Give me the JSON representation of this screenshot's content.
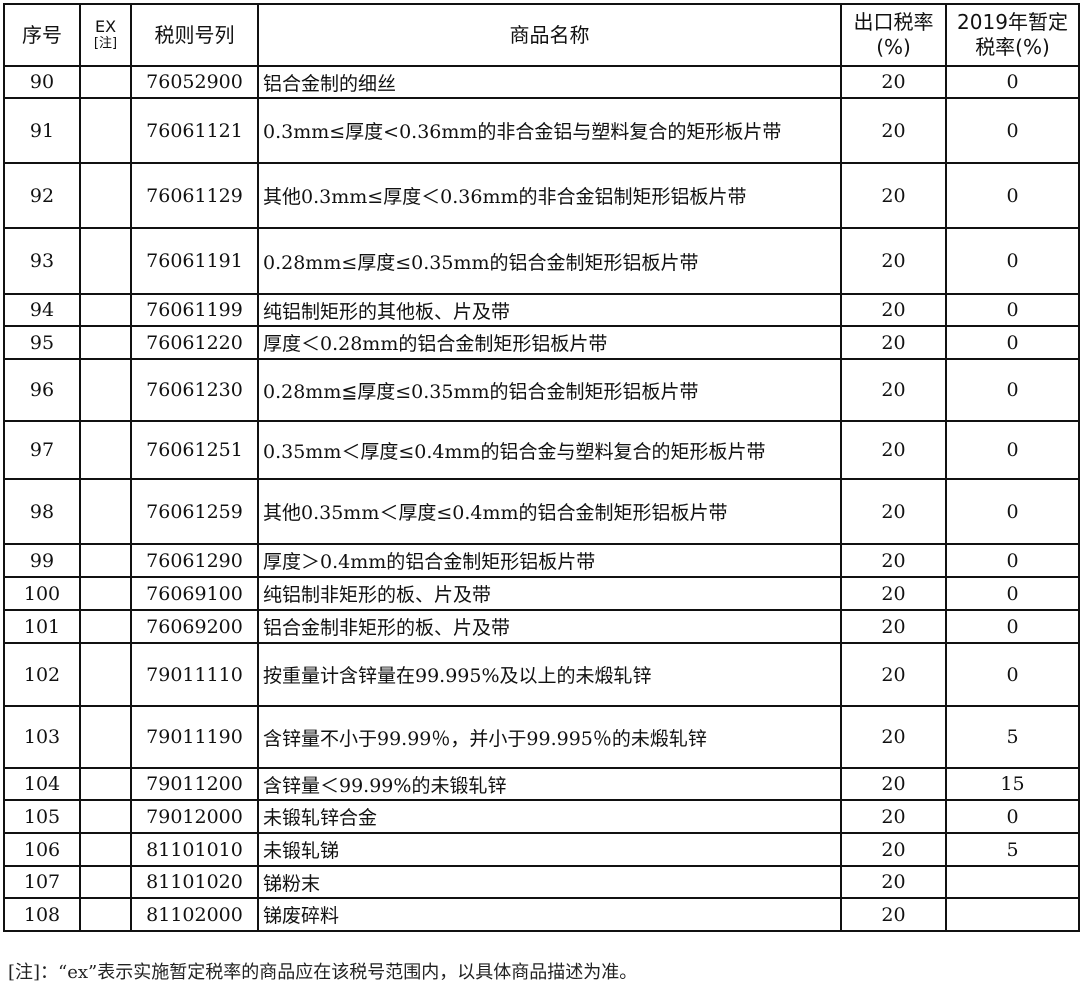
{
  "header": {
    "seq": "序号",
    "ex": "EX",
    "ex_note": "[注]",
    "code": "税则号列",
    "name": "商品名称",
    "export_rate_1": "出口税率",
    "export_rate_2": "(%)",
    "temp_rate_1": "2019年暂定",
    "temp_rate_2": "税率(%)"
  },
  "rows": [
    {
      "seq": "90",
      "ex": "",
      "code": "76052900",
      "name": "铝合金制的细丝",
      "export_rate": "20",
      "temp_rate": "0"
    },
    {
      "seq": "91",
      "ex": "",
      "code": "76061121",
      "name": "0.3mm≤厚度<0.36mm的非合金铝与塑料复合的矩形板片带",
      "export_rate": "20",
      "temp_rate": "0"
    },
    {
      "seq": "92",
      "ex": "",
      "code": "76061129",
      "name": "其他0.3mm≤厚度＜0.36mm的非合金铝制矩形铝板片带",
      "export_rate": "20",
      "temp_rate": "0"
    },
    {
      "seq": "93",
      "ex": "",
      "code": "76061191",
      "name": "0.28mm≤厚度≤0.35mm的铝合金制矩形铝板片带",
      "export_rate": "20",
      "temp_rate": "0"
    },
    {
      "seq": "94",
      "ex": "",
      "code": "76061199",
      "name": "纯铝制矩形的其他板、片及带",
      "export_rate": "20",
      "temp_rate": "0"
    },
    {
      "seq": "95",
      "ex": "",
      "code": "76061220",
      "name": "厚度＜0.28mm的铝合金制矩形铝板片带",
      "export_rate": "20",
      "temp_rate": "0"
    },
    {
      "seq": "96",
      "ex": "",
      "code": "76061230",
      "name": "0.28mm≦厚度≤0.35mm的铝合金制矩形铝板片带",
      "export_rate": "20",
      "temp_rate": "0"
    },
    {
      "seq": "97",
      "ex": "",
      "code": "76061251",
      "name": "0.35mm＜厚度≤0.4mm的铝合金与塑料复合的矩形板片带",
      "export_rate": "20",
      "temp_rate": "0"
    },
    {
      "seq": "98",
      "ex": "",
      "code": "76061259",
      "name": "其他0.35mm＜厚度≤0.4mm的铝合金制矩形铝板片带",
      "export_rate": "20",
      "temp_rate": "0"
    },
    {
      "seq": "99",
      "ex": "",
      "code": "76061290",
      "name": "厚度＞0.4mm的铝合金制矩形铝板片带",
      "export_rate": "20",
      "temp_rate": "0"
    },
    {
      "seq": "100",
      "ex": "",
      "code": "76069100",
      "name": "纯铝制非矩形的板、片及带",
      "export_rate": "20",
      "temp_rate": "0"
    },
    {
      "seq": "101",
      "ex": "",
      "code": "76069200",
      "name": "铝合金制非矩形的板、片及带",
      "export_rate": "20",
      "temp_rate": "0"
    },
    {
      "seq": "102",
      "ex": "",
      "code": "79011110",
      "name": "按重量计含锌量在99.995%及以上的未煅轧锌",
      "export_rate": "20",
      "temp_rate": "0"
    },
    {
      "seq": "103",
      "ex": "",
      "code": "79011190",
      "name": "含锌量不小于99.99％，并小于99.995％的未煅轧锌",
      "export_rate": "20",
      "temp_rate": "5"
    },
    {
      "seq": "104",
      "ex": "",
      "code": "79011200",
      "name": "含锌量＜99.99%的未锻轧锌",
      "export_rate": "20",
      "temp_rate": "15"
    },
    {
      "seq": "105",
      "ex": "",
      "code": "79012000",
      "name": "未锻轧锌合金",
      "export_rate": "20",
      "temp_rate": "0"
    },
    {
      "seq": "106",
      "ex": "",
      "code": "81101010",
      "name": "未锻轧锑",
      "export_rate": "20",
      "temp_rate": "5"
    },
    {
      "seq": "107",
      "ex": "",
      "code": "81101020",
      "name": "锑粉末",
      "export_rate": "20",
      "temp_rate": ""
    },
    {
      "seq": "108",
      "ex": "",
      "code": "81102000",
      "name": "锑废碎料",
      "export_rate": "20",
      "temp_rate": ""
    }
  ],
  "footnote": "[注]：“ex”表示实施暂定税率的商品应在该税号范围内，以具体商品描述为准。"
}
